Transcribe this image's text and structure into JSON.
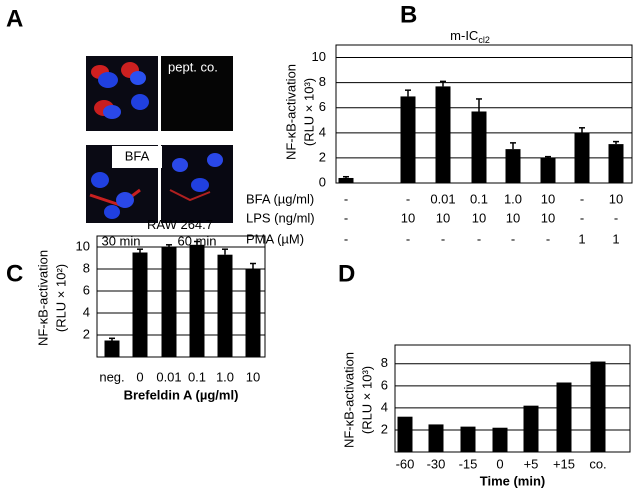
{
  "panel_labels": [
    "A",
    "B",
    "C",
    "D"
  ],
  "image_panel": {
    "labels": [
      "pept. co.",
      "BFA",
      "30 min",
      "60 min"
    ]
  },
  "chart_data": [
    {
      "type": "bar",
      "title": "m-IC",
      "title_subscript": "cl2",
      "y_label": [
        "NF-κB-activation",
        "(RLU × 10³)"
      ],
      "values": [
        0.4,
        6.9,
        7.7,
        5.7,
        2.7,
        2.0,
        4.0,
        3.1
      ],
      "errors": [
        0.1,
        0.5,
        0.4,
        1.0,
        0.5,
        0.1,
        0.4,
        0.2
      ],
      "color": "#000000",
      "ylim": [
        0,
        11
      ],
      "yticks": [
        0,
        2,
        4,
        6,
        8,
        10
      ],
      "grid": true,
      "condition_rows": [
        {
          "label": "BFA (µg/ml)",
          "cells": [
            "-",
            "-",
            "0.01",
            "0.1",
            "1.0",
            "10",
            "-",
            "10"
          ]
        },
        {
          "label": "LPS (ng/ml)",
          "cells": [
            "-",
            "10",
            "10",
            "10",
            "10",
            "10",
            "-",
            "-"
          ]
        },
        {
          "label": "PMA (µM)",
          "cells": [
            "-",
            "-",
            "-",
            "-",
            "-",
            "-",
            "1",
            "1"
          ]
        }
      ]
    },
    {
      "type": "bar",
      "title": "RAW 264.7",
      "y_label": [
        "NF-κB-activation",
        "(RLU × 10²)"
      ],
      "x_label": "Brefeldin A (µg/ml)",
      "categories": [
        "neg.",
        "0",
        "0.01",
        "0.1",
        "1.0",
        "10"
      ],
      "values": [
        1.5,
        9.5,
        10.0,
        10.2,
        9.3,
        8.0
      ],
      "errors": [
        0.2,
        0.3,
        0.2,
        0.3,
        0.5,
        0.5
      ],
      "color": "#000000",
      "ylim": [
        0,
        11
      ],
      "yticks": [
        2,
        4,
        6,
        8,
        10
      ],
      "grid": true
    },
    {
      "type": "bar",
      "y_label": [
        "NF-κB-activation",
        "(RLU × 10³)"
      ],
      "x_label": "Time (min)",
      "categories": [
        "-60",
        "-30",
        "-15",
        "0",
        "+5",
        "+15",
        "co."
      ],
      "values": [
        3.2,
        2.5,
        2.3,
        2.2,
        4.2,
        6.3,
        8.2
      ],
      "color": "#000000",
      "ylim": [
        0,
        9.7
      ],
      "yticks": [
        2,
        4,
        6,
        8
      ],
      "grid": true
    }
  ]
}
